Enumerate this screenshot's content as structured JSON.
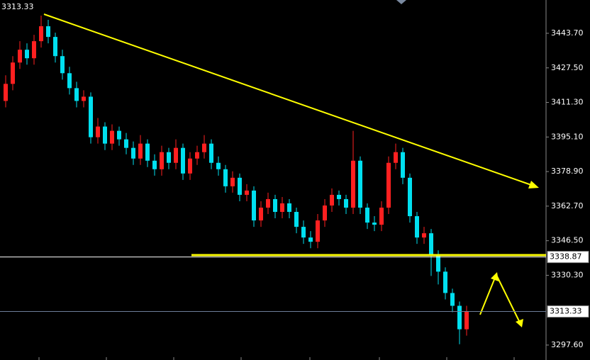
{
  "chart_data": {
    "type": "candlestick",
    "header": "3313.33",
    "up_color": "#ff2020",
    "down_color": "#00e0f0",
    "open": [
      3412,
      3420,
      3430,
      3436,
      3432,
      3440,
      3447,
      3442,
      3433,
      3425,
      3418,
      3412,
      3414,
      3395,
      3400,
      3392,
      3398,
      3394,
      3390,
      3385,
      3392,
      3384,
      3380,
      3388,
      3383,
      3390,
      3378,
      3385,
      3388,
      3392,
      3383,
      3380,
      3372,
      3376,
      3368,
      3370,
      3356,
      3362,
      3366,
      3360,
      3364,
      3360,
      3353,
      3348,
      3346,
      3356,
      3363,
      3368,
      3366,
      3362,
      3384,
      3362,
      3355,
      3354,
      3362,
      3383,
      3388,
      3376,
      3358,
      3348,
      3350,
      3340,
      3332,
      3322,
      3316,
      3305
    ],
    "high": [
      3424,
      3433,
      3440,
      3439,
      3443,
      3452,
      3450,
      3444,
      3436,
      3428,
      3421,
      3417,
      3416,
      3404,
      3402,
      3401,
      3400,
      3397,
      3393,
      3396,
      3394,
      3387,
      3391,
      3390,
      3394,
      3392,
      3388,
      3391,
      3396,
      3394,
      3386,
      3382,
      3379,
      3378,
      3373,
      3372,
      3365,
      3369,
      3368,
      3367,
      3366,
      3362,
      3356,
      3351,
      3359,
      3366,
      3371,
      3370,
      3368,
      3398,
      3386,
      3364,
      3358,
      3365,
      3386,
      3392,
      3390,
      3378,
      3360,
      3353,
      3352,
      3342,
      3334,
      3324,
      3318,
      3316
    ],
    "low": [
      3409,
      3417,
      3427,
      3429,
      3429,
      3437,
      3439,
      3430,
      3422,
      3415,
      3409,
      3409,
      3392,
      3392,
      3389,
      3389,
      3391,
      3387,
      3382,
      3382,
      3381,
      3377,
      3377,
      3380,
      3380,
      3375,
      3375,
      3382,
      3385,
      3380,
      3377,
      3369,
      3369,
      3365,
      3365,
      3353,
      3353,
      3359,
      3357,
      3357,
      3357,
      3350,
      3345,
      3343,
      3343,
      3353,
      3360,
      3363,
      3359,
      3359,
      3359,
      3352,
      3351,
      3351,
      3359,
      3380,
      3373,
      3355,
      3345,
      3345,
      3330,
      3326,
      3319,
      3313,
      3298,
      3302
    ],
    "close": [
      3420,
      3430,
      3436,
      3432,
      3440,
      3447,
      3442,
      3433,
      3425,
      3418,
      3412,
      3414,
      3395,
      3400,
      3392,
      3398,
      3394,
      3390,
      3385,
      3392,
      3384,
      3380,
      3388,
      3383,
      3390,
      3378,
      3385,
      3388,
      3392,
      3383,
      3380,
      3372,
      3376,
      3368,
      3370,
      3356,
      3362,
      3366,
      3360,
      3364,
      3360,
      3353,
      3348,
      3346,
      3356,
      3363,
      3368,
      3366,
      3362,
      3384,
      3362,
      3355,
      3354,
      3362,
      3383,
      3388,
      3376,
      3358,
      3348,
      3350,
      3340,
      3332,
      3322,
      3316,
      3305,
      3313.33
    ],
    "ylim": [
      3290.6,
      3459.3
    ],
    "yticks": [
      {
        "value": 3443.7,
        "label": "3443.70"
      },
      {
        "value": 3427.5,
        "label": "3427.50"
      },
      {
        "value": 3411.3,
        "label": "3411.30"
      },
      {
        "value": 3395.1,
        "label": "3395.10"
      },
      {
        "value": 3378.9,
        "label": "3378.90"
      },
      {
        "value": 3362.7,
        "label": "3362.70"
      },
      {
        "value": 3346.5,
        "label": "3346.50"
      },
      {
        "value": 3330.3,
        "label": "3330.30"
      },
      {
        "value": 3297.6,
        "label": "3297.60"
      }
    ],
    "price_lines": [
      3338.87,
      3313.33
    ]
  }
}
